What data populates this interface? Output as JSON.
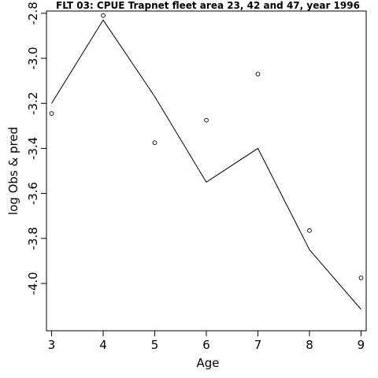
{
  "chart_data": {
    "type": "line",
    "title": "FLT 03: CPUE Trapnet fleet area 23, 42 and 47, year 1996",
    "xlabel": "Age",
    "ylabel": "log Obs & pred",
    "x": [
      3,
      4,
      5,
      6,
      7,
      8,
      9
    ],
    "xticks": [
      "3",
      "4",
      "5",
      "6",
      "7",
      "8",
      "9"
    ],
    "yticks": [
      "-2.8",
      "-3.0",
      "-3.2",
      "-3.4",
      "-3.6",
      "-3.8",
      "-4.0"
    ],
    "ytick_values": [
      -2.8,
      -3.0,
      -3.2,
      -3.4,
      -3.6,
      -3.8,
      -4.0
    ],
    "xlim": [
      2.9,
      9.1
    ],
    "ylim": [
      -4.21,
      -2.79
    ],
    "series": [
      {
        "style": "points",
        "values": [
          -3.245,
          -2.81,
          -3.375,
          -3.275,
          -3.07,
          -3.765,
          -3.975
        ]
      },
      {
        "style": "line",
        "values": [
          -3.2,
          -2.83,
          -3.17,
          -3.55,
          -3.4,
          -3.85,
          -4.115
        ]
      }
    ],
    "grid": false,
    "legend": "none"
  }
}
